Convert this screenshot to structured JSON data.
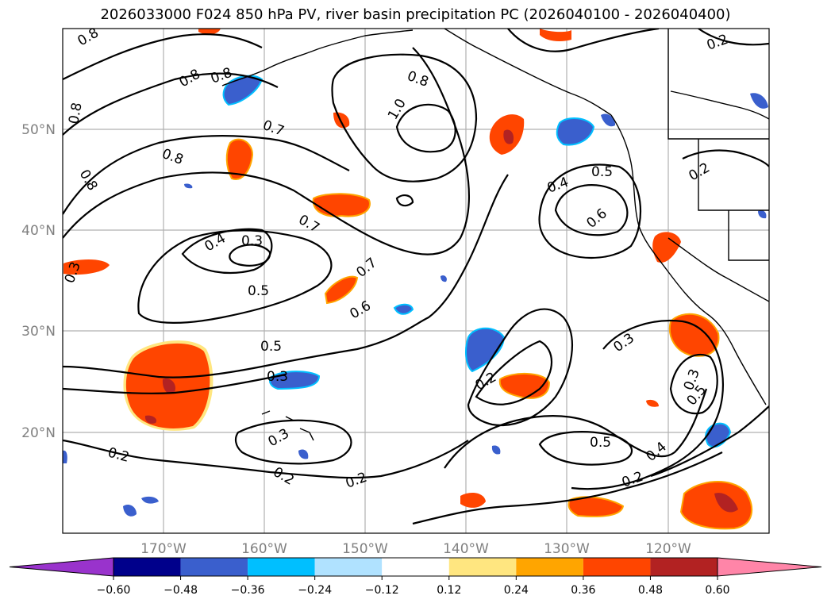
{
  "title": "2026033000 F024 850 hPa PV, river basin precipitation PC (2026040100 - 2026040400)",
  "map": {
    "projection": "cylindrical",
    "lon_range": [
      -180,
      -110
    ],
    "lat_range": [
      10,
      60
    ],
    "region": "North Pacific",
    "gridlines": true
  },
  "axes": {
    "lon_labels": [
      "170°W",
      "160°W",
      "150°W",
      "140°W",
      "130°W",
      "120°W"
    ],
    "lat_labels": [
      "50°N",
      "40°N",
      "30°N",
      "20°N"
    ]
  },
  "contour_labels": [
    "0.8",
    "0.8",
    "0.8",
    "0.8",
    "1.0",
    "0.8",
    "0.7",
    "0.8",
    "0.8",
    "0.2",
    "0.5",
    "0.4",
    "0.6",
    "0.2",
    "0.4",
    "0.3",
    "0.7",
    "0.7",
    "0.3",
    "0.5",
    "0.6",
    "0.5",
    "0.3",
    "0.3",
    "0.2",
    "0.2",
    "0.3",
    "0.3",
    "0.5",
    "0.2",
    "0.5",
    "0.4",
    "0.2",
    "0.2"
  ],
  "colorbar": {
    "ticks": [
      "−0.60",
      "−0.48",
      "−0.36",
      "−0.24",
      "−0.12",
      "0.12",
      "0.24",
      "0.36",
      "0.48",
      "0.60"
    ],
    "colors": [
      "#9933cc",
      "#00008b",
      "#3a5fcd",
      "#00bfff",
      "#b0e2ff",
      "#ffffff",
      "#ffe680",
      "#ffa500",
      "#ff4500",
      "#b22222",
      "#ff85a8"
    ],
    "extend": "both"
  }
}
